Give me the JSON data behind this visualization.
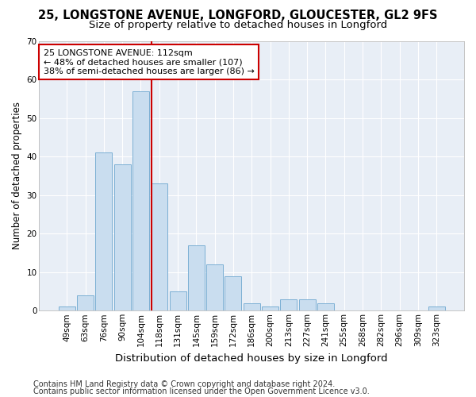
{
  "title1": "25, LONGSTONE AVENUE, LONGFORD, GLOUCESTER, GL2 9FS",
  "title2": "Size of property relative to detached houses in Longford",
  "xlabel": "Distribution of detached houses by size in Longford",
  "ylabel": "Number of detached properties",
  "categories": [
    "49sqm",
    "63sqm",
    "76sqm",
    "90sqm",
    "104sqm",
    "118sqm",
    "131sqm",
    "145sqm",
    "159sqm",
    "172sqm",
    "186sqm",
    "200sqm",
    "213sqm",
    "227sqm",
    "241sqm",
    "255sqm",
    "268sqm",
    "282sqm",
    "296sqm",
    "309sqm",
    "323sqm"
  ],
  "values": [
    1,
    4,
    41,
    38,
    57,
    33,
    5,
    17,
    12,
    9,
    2,
    1,
    3,
    3,
    2,
    0,
    0,
    0,
    0,
    0,
    1
  ],
  "bar_color": "#c9ddef",
  "bar_edge_color": "#7bafd4",
  "vline_color": "#cc0000",
  "annotation_text": "25 LONGSTONE AVENUE: 112sqm\n← 48% of detached houses are smaller (107)\n38% of semi-detached houses are larger (86) →",
  "annotation_box_color": "#ffffff",
  "annotation_box_edge": "#cc0000",
  "bg_color": "#ffffff",
  "plot_bg_color": "#e8eef6",
  "grid_color": "#ffffff",
  "footnote1": "Contains HM Land Registry data © Crown copyright and database right 2024.",
  "footnote2": "Contains public sector information licensed under the Open Government Licence v3.0.",
  "ylim": [
    0,
    70
  ],
  "yticks": [
    0,
    10,
    20,
    30,
    40,
    50,
    60,
    70
  ],
  "title1_fontsize": 10.5,
  "title2_fontsize": 9.5,
  "xlabel_fontsize": 9.5,
  "ylabel_fontsize": 8.5,
  "tick_fontsize": 7.5,
  "annot_fontsize": 8,
  "footnote_fontsize": 7
}
